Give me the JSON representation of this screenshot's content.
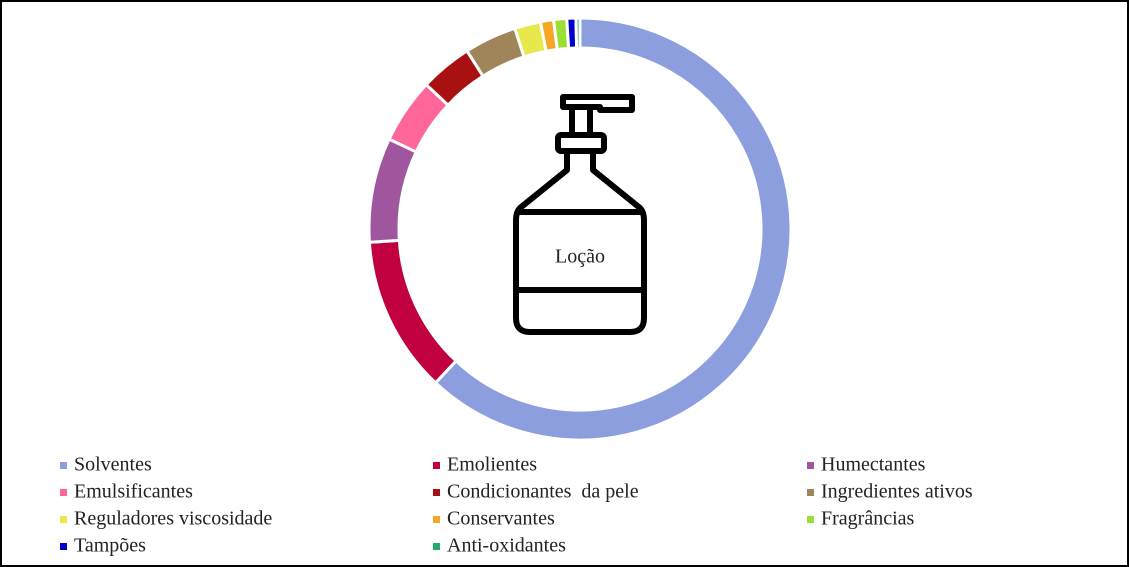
{
  "chart_data": {
    "type": "donut",
    "annotation": "Loção",
    "categories": [
      "Solventes",
      "Emolientes",
      "Humectantes",
      "Emulsificantes",
      "Condicionantes  da pele",
      "Ingredientes ativos",
      "Reguladores viscosidade",
      "Conservantes",
      "Fragrâncias",
      "Tampões",
      "Anti-oxidantes"
    ],
    "values": [
      62,
      12,
      8,
      5,
      4,
      4,
      2,
      1,
      1,
      0.7,
      0.3
    ],
    "colors": [
      "#8c9ede",
      "#c0003f",
      "#a0569e",
      "#ff6699",
      "#a81111",
      "#a0855b",
      "#e8e84a",
      "#f5a623",
      "#99e033",
      "#0000cc",
      "#22aa66"
    ],
    "legend": "bottom"
  }
}
